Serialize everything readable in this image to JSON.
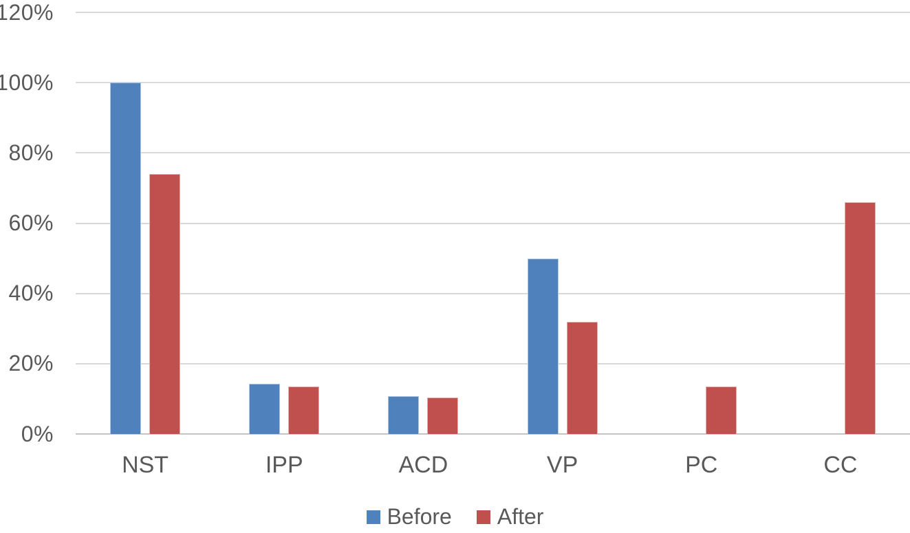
{
  "chart_data": {
    "type": "bar",
    "title": "",
    "categories": [
      "NST",
      "IPP",
      "ACD",
      "VP",
      "PC",
      "CC"
    ],
    "series": [
      {
        "name": "Before",
        "color": "#4F81BD",
        "values": [
          100,
          14.3,
          10.7,
          50,
          0,
          0
        ]
      },
      {
        "name": "After",
        "color": "#C0504D",
        "values": [
          74,
          13.6,
          10.3,
          32,
          13.6,
          66
        ]
      }
    ],
    "y_axis": {
      "unit": "%",
      "min": 0,
      "max": 120,
      "tick_values": [
        0,
        20,
        40,
        60,
        80,
        100,
        120
      ],
      "ticks": [
        "0%",
        "20%",
        "40%",
        "60%",
        "80%",
        "100%",
        "120%"
      ]
    },
    "grid": true,
    "legend_position": "bottom",
    "colors": {
      "gridline": "#D9D9D9",
      "axis_line": "#C3C3C3",
      "text": "#595959",
      "background": "#FFFFFF"
    }
  }
}
